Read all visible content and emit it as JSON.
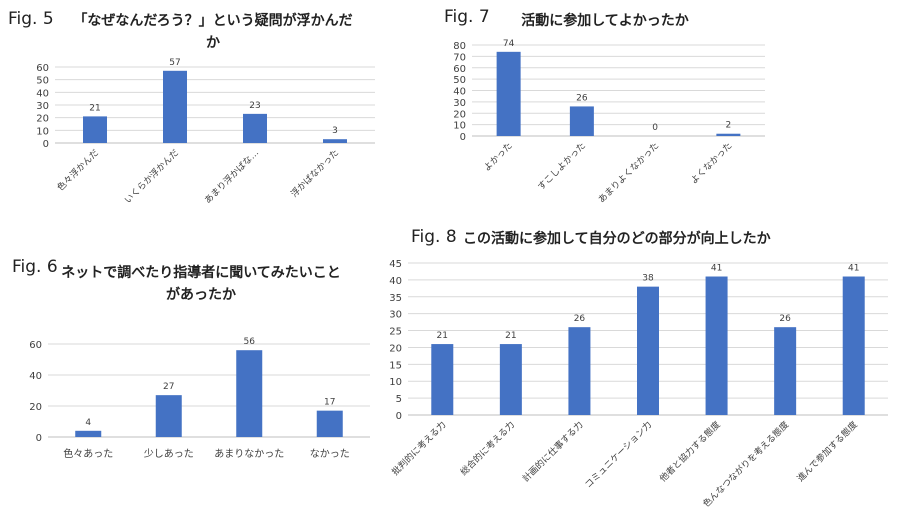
{
  "figures": [
    {
      "fig_label": "Fig. 5",
      "title": "「なぜなんだろう？」という疑問が浮かんだか",
      "chart_data": {
        "type": "bar",
        "categories": [
          "色々浮かんだ",
          "いくらか浮かんだ",
          "あまり浮かばな…",
          "浮かばなかった"
        ],
        "values": [
          21,
          57,
          23,
          3
        ],
        "yticks": [
          0,
          10,
          20,
          30,
          40,
          50,
          60
        ],
        "ylim": [
          0,
          60
        ],
        "grid": true,
        "bar_color": "#4472C4"
      }
    },
    {
      "fig_label": "Fig. 7",
      "title": "活動に参加してよかったか",
      "chart_data": {
        "type": "bar",
        "categories": [
          "よかった",
          "すこしよかった",
          "あまりよくなかった",
          "よくなかった"
        ],
        "values": [
          74,
          26,
          0,
          2
        ],
        "yticks": [
          0,
          10,
          20,
          30,
          40,
          50,
          60,
          70,
          80
        ],
        "ylim": [
          0,
          80
        ],
        "grid": true,
        "bar_color": "#4472C4"
      }
    },
    {
      "fig_label": "Fig. 6",
      "title": "ネットで調べたり指導者に聞いてみたいことがあったか",
      "chart_data": {
        "type": "bar",
        "categories": [
          "色々あった",
          "少しあった",
          "あまりなかった",
          "なかった"
        ],
        "values": [
          4,
          27,
          56,
          17
        ],
        "yticks": [
          0,
          20,
          40,
          60
        ],
        "ylim": [
          0,
          60
        ],
        "grid": true,
        "bar_color": "#4472C4"
      }
    },
    {
      "fig_label": "Fig. 8",
      "title": "この活動に参加して自分のどの部分が向上したか",
      "chart_data": {
        "type": "bar",
        "categories": [
          "批判的に考える力",
          "総合的に考える力",
          "計画的に仕事する力",
          "コミュニケーション力",
          "他者と協力する態度",
          "色んなつながりを考える態度",
          "進んで参加する態度"
        ],
        "values": [
          21,
          21,
          26,
          38,
          41,
          26,
          41
        ],
        "yticks": [
          0,
          5,
          10,
          15,
          20,
          25,
          30,
          35,
          40,
          45
        ],
        "ylim": [
          0,
          45
        ],
        "grid": true,
        "bar_color": "#4472C4"
      }
    }
  ]
}
